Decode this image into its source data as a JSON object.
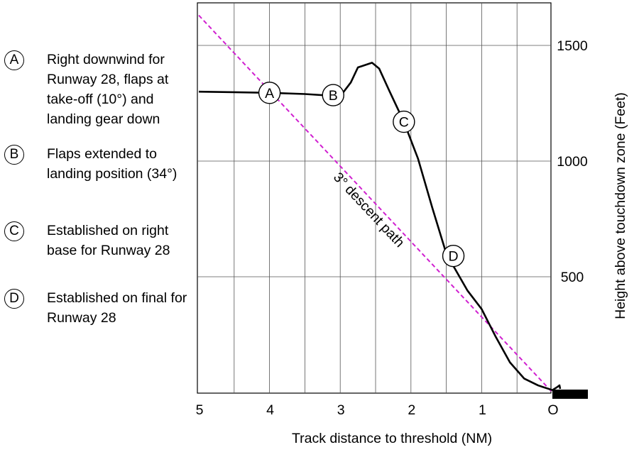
{
  "legend": [
    {
      "letter": "A",
      "text": "Right downwind for Runway 28, flaps at take-off (10°) and landing gear down"
    },
    {
      "letter": "B",
      "text": "Flaps extended to landing position (34°)"
    },
    {
      "letter": "C",
      "text": "Established on right base for Runway 28"
    },
    {
      "letter": "D",
      "text": "Established on final for Runway 28"
    }
  ],
  "chart_data": {
    "type": "line",
    "xlabel": "Track distance to threshold (NM)",
    "ylabel": "Height above touchdown zone (Feet)",
    "x_tick_labels": [
      "5",
      "4",
      "3",
      "2",
      "1",
      "O"
    ],
    "x_ticks": [
      5,
      4,
      3,
      2,
      1,
      0
    ],
    "y_tick_labels": [
      "500",
      "1000",
      "1500"
    ],
    "y_ticks": [
      500,
      1000,
      1500
    ],
    "xlim": [
      5.0,
      -0.5
    ],
    "ylim": [
      0,
      1700
    ],
    "grid": true,
    "annotation": "3° descent path",
    "series": [
      {
        "values": [
          {
            "x": 5.0,
            "y": 1300
          },
          {
            "x": 4.5,
            "y": 1298
          },
          {
            "x": 4.0,
            "y": 1295
          },
          {
            "x": 3.5,
            "y": 1290
          },
          {
            "x": 3.0,
            "y": 1280
          },
          {
            "x": 2.85,
            "y": 1340
          },
          {
            "x": 2.75,
            "y": 1405
          },
          {
            "x": 2.55,
            "y": 1425
          },
          {
            "x": 2.45,
            "y": 1400
          },
          {
            "x": 2.3,
            "y": 1300
          },
          {
            "x": 2.1,
            "y": 1170
          },
          {
            "x": 1.9,
            "y": 1010
          },
          {
            "x": 1.7,
            "y": 800
          },
          {
            "x": 1.5,
            "y": 600
          },
          {
            "x": 1.35,
            "y": 520
          },
          {
            "x": 1.2,
            "y": 440
          },
          {
            "x": 1.0,
            "y": 360
          },
          {
            "x": 0.8,
            "y": 240
          },
          {
            "x": 0.6,
            "y": 130
          },
          {
            "x": 0.4,
            "y": 60
          },
          {
            "x": 0.2,
            "y": 30
          },
          {
            "x": 0.0,
            "y": 10
          }
        ]
      },
      {
        "type": "dashed",
        "color": "#d020d0",
        "values": [
          {
            "x": 5.0,
            "y": 1630
          },
          {
            "x": 0.0,
            "y": 0
          }
        ]
      }
    ],
    "markers": [
      {
        "label": "A",
        "x": 4.0,
        "y": 1295
      },
      {
        "label": "B",
        "x": 3.1,
        "y": 1285
      },
      {
        "label": "C",
        "x": 2.1,
        "y": 1170
      },
      {
        "label": "D",
        "x": 1.4,
        "y": 590
      }
    ]
  }
}
